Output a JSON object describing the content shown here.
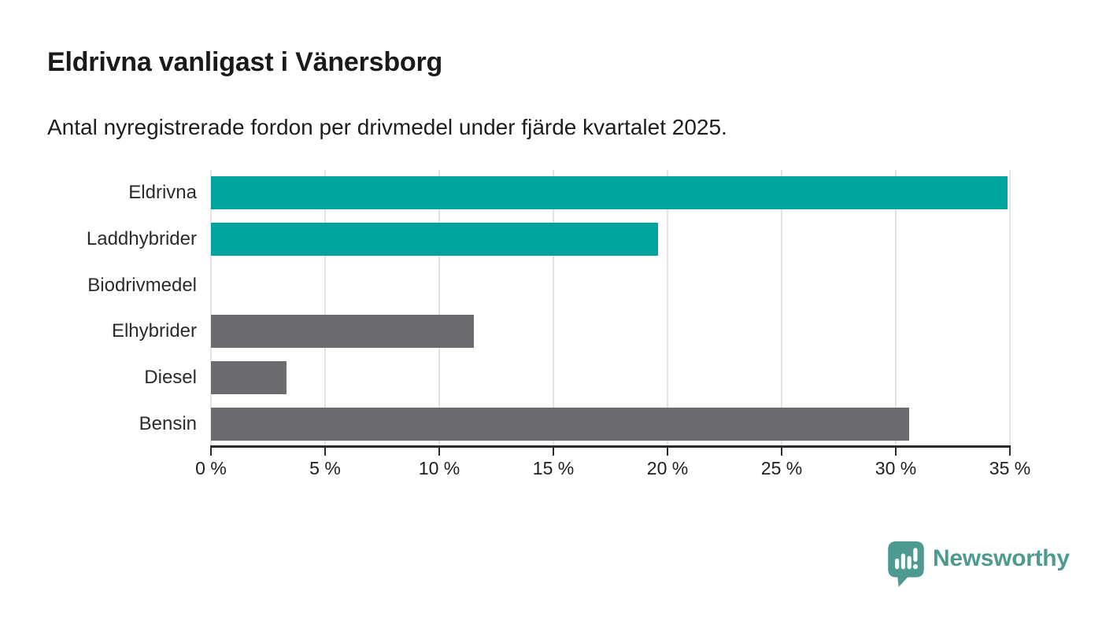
{
  "chart_data": {
    "type": "bar",
    "orientation": "horizontal",
    "title": "Eldrivna vanligast i Vänersborg",
    "subtitle": "Antal nyregistrerade fordon per drivmedel under fjärde kvartalet 2025.",
    "categories": [
      "Eldrivna",
      "Laddhybrider",
      "Biodrivmedel",
      "Elhybrider",
      "Diesel",
      "Bensin"
    ],
    "values": [
      34.9,
      19.6,
      0,
      11.5,
      3.3,
      30.6
    ],
    "unit": "%",
    "xlabel": "",
    "ylabel": "",
    "xlim": [
      0,
      35
    ],
    "ticks": [
      0,
      5,
      10,
      15,
      20,
      25,
      30,
      35
    ],
    "tick_labels": [
      "0 %",
      "5 %",
      "10 %",
      "15 %",
      "20 %",
      "25 %",
      "30 %",
      "35 %"
    ],
    "bar_colors": [
      "#00a49c",
      "#00a49c",
      "#6c6c70",
      "#6c6c70",
      "#6c6c70",
      "#6c6c70"
    ],
    "highlight_color": "#00a49c",
    "default_color": "#6c6c70",
    "grid": true,
    "gridline_color": "#e3e3e3",
    "axis_color": "#2b2b2b",
    "legend_position": "none"
  },
  "logo": {
    "brand_name": "Newsworthy",
    "brand_color": "#4d9b90",
    "icon": "speech-bubble-bar-chart-icon"
  }
}
